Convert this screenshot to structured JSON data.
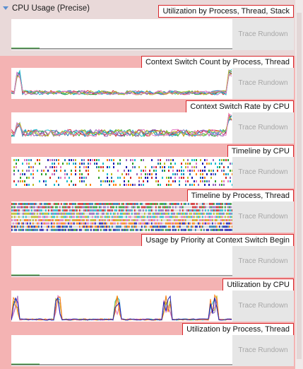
{
  "header": {
    "title": "CPU Usage (Precise)",
    "expander_icon": "chevron-down-icon"
  },
  "panels": [
    {
      "label": "Utilization by Process, Thread, Stack",
      "rundown": "Trace Rundown",
      "kind": "flat"
    },
    {
      "label": "Context Switch Count by Process, Thread",
      "rundown": "Trace Rundown",
      "kind": "spiky-lines"
    },
    {
      "label": "Context Switch Rate by CPU",
      "rundown": "Trace Rundown",
      "kind": "noisy-lines"
    },
    {
      "label": "Timeline by CPU",
      "rundown": "Trace Rundown",
      "kind": "timeline-sparse"
    },
    {
      "label": "Timeline by Process, Thread",
      "rundown": "Trace Rundown",
      "kind": "timeline-dense"
    },
    {
      "label": "Usage by Priority at Context Switch Begin",
      "rundown": "Trace Rundown",
      "kind": "flat"
    },
    {
      "label": "Utilization by CPU",
      "rundown": "Trace Rundown",
      "kind": "peaks"
    },
    {
      "label": "Utilization by Process, Thread",
      "rundown": "Trace Rundown",
      "kind": "flat"
    }
  ],
  "colors": {
    "background": "#f4b3b3",
    "label_border": "#d8252a",
    "rundown_bg": "#e6e6e6",
    "series": [
      "#1f77b4",
      "#2ca02c",
      "#d62728",
      "#9467bd",
      "#17becf",
      "#bcbd22",
      "#e377c2",
      "#ff7f0e",
      "#1b1bb3"
    ]
  }
}
